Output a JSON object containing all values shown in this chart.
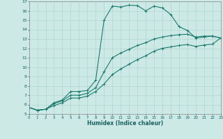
{
  "xlabel": "Humidex (Indice chaleur)",
  "background_color": "#cce9e5",
  "grid_color": "#b0d5d0",
  "line_color": "#1a7a6e",
  "xlim": [
    0,
    23
  ],
  "ylim": [
    5,
    17
  ],
  "xticks": [
    0,
    1,
    2,
    3,
    4,
    5,
    6,
    7,
    8,
    9,
    10,
    11,
    12,
    13,
    14,
    15,
    16,
    17,
    18,
    19,
    20,
    21,
    22,
    23
  ],
  "yticks": [
    5,
    6,
    7,
    8,
    9,
    10,
    11,
    12,
    13,
    14,
    15,
    16,
    17
  ],
  "line1_x": [
    0,
    1,
    2,
    3,
    4,
    5,
    6,
    7,
    8,
    9,
    10,
    11,
    12,
    13,
    14,
    15,
    16,
    17,
    18,
    19,
    20,
    21,
    22,
    23
  ],
  "line1_y": [
    5.7,
    5.4,
    5.5,
    6.2,
    6.5,
    7.4,
    7.4,
    7.5,
    8.6,
    15.0,
    16.5,
    16.4,
    16.6,
    16.55,
    16.0,
    16.5,
    16.3,
    15.6,
    14.3,
    13.9,
    13.1,
    13.2,
    13.3,
    13.1
  ],
  "line2_x": [
    0,
    1,
    2,
    3,
    4,
    5,
    6,
    7,
    8,
    9,
    10,
    11,
    12,
    13,
    14,
    15,
    16,
    17,
    18,
    19,
    20,
    21,
    22,
    23
  ],
  "line2_y": [
    5.7,
    5.4,
    5.5,
    6.1,
    6.4,
    7.0,
    7.0,
    7.2,
    7.8,
    9.5,
    11.0,
    11.5,
    11.9,
    12.3,
    12.6,
    13.0,
    13.2,
    13.35,
    13.45,
    13.5,
    13.2,
    13.3,
    13.3,
    13.1
  ],
  "line3_x": [
    0,
    1,
    2,
    3,
    4,
    5,
    6,
    7,
    8,
    9,
    10,
    11,
    12,
    13,
    14,
    15,
    16,
    17,
    18,
    19,
    20,
    21,
    22,
    23
  ],
  "line3_y": [
    5.7,
    5.4,
    5.5,
    5.9,
    6.2,
    6.7,
    6.7,
    6.9,
    7.4,
    8.2,
    9.2,
    9.8,
    10.3,
    10.8,
    11.2,
    11.7,
    12.0,
    12.15,
    12.3,
    12.4,
    12.2,
    12.35,
    12.45,
    13.1
  ]
}
